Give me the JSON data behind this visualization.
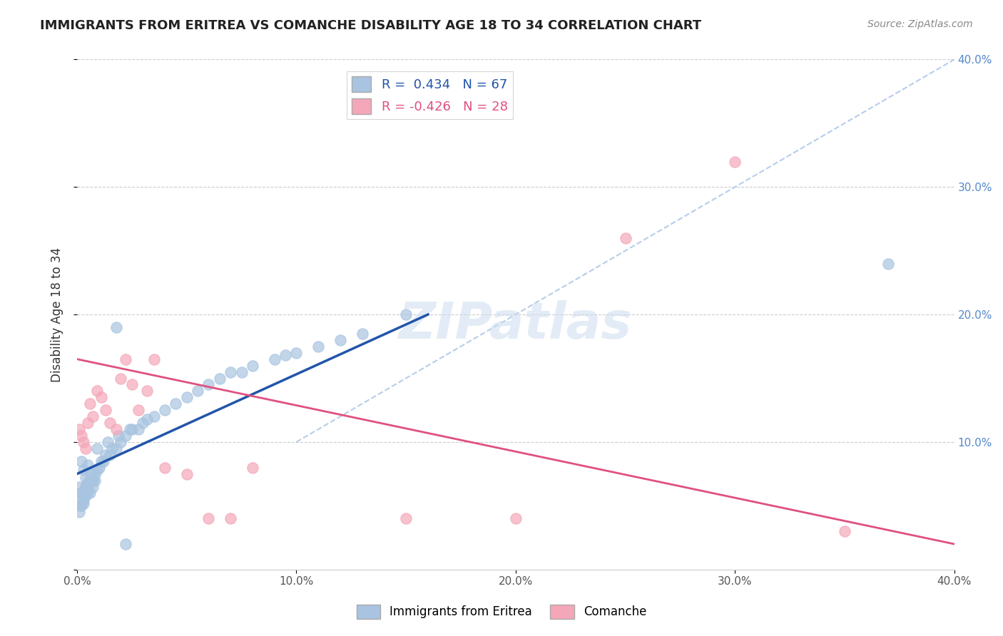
{
  "title": "IMMIGRANTS FROM ERITREA VS COMANCHE DISABILITY AGE 18 TO 34 CORRELATION CHART",
  "source": "Source: ZipAtlas.com",
  "ylabel": "Disability Age 18 to 34",
  "xlim": [
    0.0,
    0.4
  ],
  "ylim": [
    0.0,
    0.4
  ],
  "xticks": [
    0.0,
    0.1,
    0.2,
    0.3,
    0.4
  ],
  "yticks": [
    0.0,
    0.1,
    0.2,
    0.3,
    0.4
  ],
  "xtick_labels": [
    "0.0%",
    "10.0%",
    "20.0%",
    "30.0%",
    "40.0%"
  ],
  "ytick_right_labels": [
    "",
    "10.0%",
    "20.0%",
    "30.0%",
    "40.0%"
  ],
  "legend_label1": "Immigrants from Eritrea",
  "legend_label2": "Comanche",
  "R1": 0.434,
  "N1": 67,
  "R2": -0.426,
  "N2": 28,
  "color_blue": "#a8c4e0",
  "color_pink": "#f4a7b9",
  "line_color_blue": "#2255aa",
  "line_color_pink": "#e05080",
  "dashed_line_color": "#b0c8e8",
  "watermark": "ZIPatlas",
  "blue_points_x": [
    0.002,
    0.003,
    0.001,
    0.004,
    0.002,
    0.005,
    0.003,
    0.002,
    0.001,
    0.006,
    0.004,
    0.003,
    0.007,
    0.005,
    0.008,
    0.006,
    0.004,
    0.002,
    0.003,
    0.001,
    0.009,
    0.007,
    0.005,
    0.003,
    0.002,
    0.011,
    0.008,
    0.006,
    0.004,
    0.013,
    0.01,
    0.007,
    0.016,
    0.012,
    0.02,
    0.015,
    0.025,
    0.022,
    0.03,
    0.018,
    0.028,
    0.035,
    0.04,
    0.05,
    0.055,
    0.065,
    0.07,
    0.08,
    0.09,
    0.1,
    0.11,
    0.12,
    0.13,
    0.005,
    0.009,
    0.014,
    0.019,
    0.024,
    0.032,
    0.045,
    0.06,
    0.075,
    0.095,
    0.018,
    0.15,
    0.022,
    0.37
  ],
  "blue_points_y": [
    0.085,
    0.078,
    0.065,
    0.072,
    0.06,
    0.068,
    0.055,
    0.05,
    0.045,
    0.06,
    0.058,
    0.052,
    0.065,
    0.06,
    0.07,
    0.075,
    0.065,
    0.06,
    0.055,
    0.05,
    0.078,
    0.07,
    0.065,
    0.06,
    0.055,
    0.085,
    0.075,
    0.07,
    0.065,
    0.09,
    0.08,
    0.07,
    0.095,
    0.085,
    0.1,
    0.09,
    0.11,
    0.105,
    0.115,
    0.095,
    0.11,
    0.12,
    0.125,
    0.135,
    0.14,
    0.15,
    0.155,
    0.16,
    0.165,
    0.17,
    0.175,
    0.18,
    0.185,
    0.082,
    0.095,
    0.1,
    0.105,
    0.11,
    0.118,
    0.13,
    0.145,
    0.155,
    0.168,
    0.19,
    0.2,
    0.02,
    0.24
  ],
  "pink_points_x": [
    0.001,
    0.003,
    0.005,
    0.002,
    0.004,
    0.007,
    0.006,
    0.009,
    0.011,
    0.013,
    0.015,
    0.018,
    0.02,
    0.025,
    0.028,
    0.032,
    0.04,
    0.05,
    0.06,
    0.07,
    0.15,
    0.2,
    0.25,
    0.3,
    0.35,
    0.022,
    0.035,
    0.08
  ],
  "pink_points_y": [
    0.11,
    0.1,
    0.115,
    0.105,
    0.095,
    0.12,
    0.13,
    0.14,
    0.135,
    0.125,
    0.115,
    0.11,
    0.15,
    0.145,
    0.125,
    0.14,
    0.08,
    0.075,
    0.04,
    0.04,
    0.04,
    0.04,
    0.26,
    0.32,
    0.03,
    0.165,
    0.165,
    0.08
  ],
  "blue_line_x": [
    0.0,
    0.16
  ],
  "blue_line_y": [
    0.075,
    0.2
  ],
  "pink_line_x": [
    0.0,
    0.4
  ],
  "pink_line_y": [
    0.165,
    0.02
  ],
  "dashed_line_x": [
    0.1,
    0.4
  ],
  "dashed_line_y": [
    0.1,
    0.4
  ]
}
